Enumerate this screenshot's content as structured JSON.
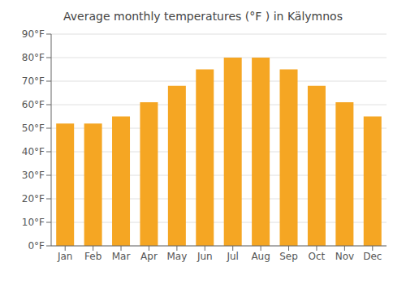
{
  "chart_data": {
    "type": "bar",
    "title": "Average monthly temperatures (°F ) in Kälymnos",
    "categories": [
      "Jan",
      "Feb",
      "Mar",
      "Apr",
      "May",
      "Jun",
      "Jul",
      "Aug",
      "Sep",
      "Oct",
      "Nov",
      "Dec"
    ],
    "values": [
      52,
      52,
      55,
      61,
      68,
      75,
      80,
      80,
      75,
      68,
      61,
      55
    ],
    "color": "#F5A623",
    "ylim": [
      0,
      90
    ],
    "yticks": [
      {
        "value": 0,
        "label": "0°F"
      },
      {
        "value": 10,
        "label": "10°F"
      },
      {
        "value": 20,
        "label": "20°F"
      },
      {
        "value": 30,
        "label": "30°F"
      },
      {
        "value": 40,
        "label": "40°F"
      },
      {
        "value": 50,
        "label": "50°F"
      },
      {
        "value": 60,
        "label": "60°F"
      },
      {
        "value": 70,
        "label": "70°F"
      },
      {
        "value": 80,
        "label": "80°F"
      },
      {
        "value": 90,
        "label": "90°F"
      }
    ],
    "grid": true
  }
}
